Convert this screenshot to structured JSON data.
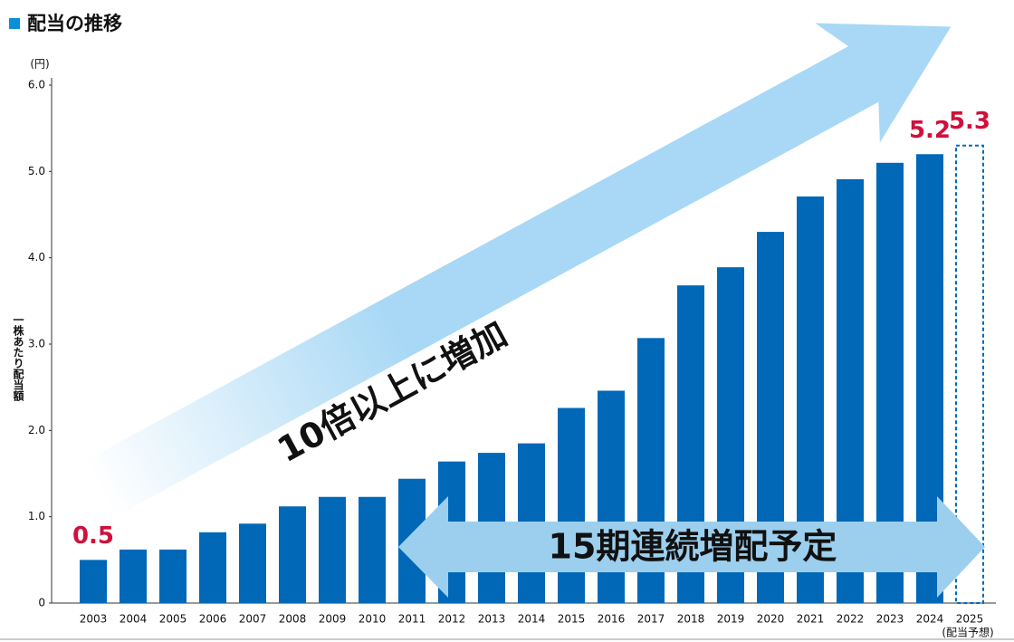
{
  "chart_data": {
    "type": "bar",
    "title": "配当の推移",
    "y_unit": "(円)",
    "y_label": "一株あたり配当額",
    "categories": [
      "2003",
      "2004",
      "2005",
      "2006",
      "2007",
      "2008",
      "2009",
      "2010",
      "2011",
      "2012",
      "2013",
      "2014",
      "2015",
      "2016",
      "2017",
      "2018",
      "2019",
      "2020",
      "2021",
      "2022",
      "2023",
      "2024",
      "2025"
    ],
    "category_note": "(配当予想)",
    "series": [
      {
        "color": "#0068b7",
        "values": [
          0.5,
          0.62,
          0.62,
          0.82,
          0.92,
          1.12,
          1.23,
          1.23,
          1.44,
          1.64,
          1.74,
          1.85,
          2.26,
          2.46,
          3.07,
          3.68,
          3.89,
          4.3,
          4.71,
          4.91,
          5.1,
          5.2,
          null
        ],
        "value_labels": [
          "0.5",
          null,
          null,
          null,
          null,
          null,
          null,
          null,
          null,
          null,
          null,
          null,
          null,
          null,
          null,
          null,
          null,
          null,
          null,
          null,
          null,
          "5.2",
          null
        ]
      },
      {
        "color": "#0068b7",
        "style": "dashed",
        "values": [
          null,
          null,
          null,
          null,
          null,
          null,
          null,
          null,
          null,
          null,
          null,
          null,
          null,
          null,
          null,
          null,
          null,
          null,
          null,
          null,
          null,
          null,
          5.3
        ],
        "value_labels": [
          null,
          null,
          null,
          null,
          null,
          null,
          null,
          null,
          null,
          null,
          null,
          null,
          null,
          null,
          null,
          null,
          null,
          null,
          null,
          null,
          null,
          null,
          "5.3"
        ]
      }
    ],
    "annotations": [
      "10倍以上に増加",
      "15期連続増配予定"
    ],
    "ylim": [
      0,
      6
    ],
    "yticks": [
      0,
      {
        "value": 1,
        "label": "1.0"
      },
      {
        "value": 2,
        "label": "2.0"
      },
      {
        "value": 3,
        "label": "3.0"
      },
      {
        "value": 4,
        "label": "4.0"
      },
      {
        "value": 5,
        "label": "5.0"
      },
      {
        "value": 6,
        "label": "6.0"
      }
    ]
  }
}
